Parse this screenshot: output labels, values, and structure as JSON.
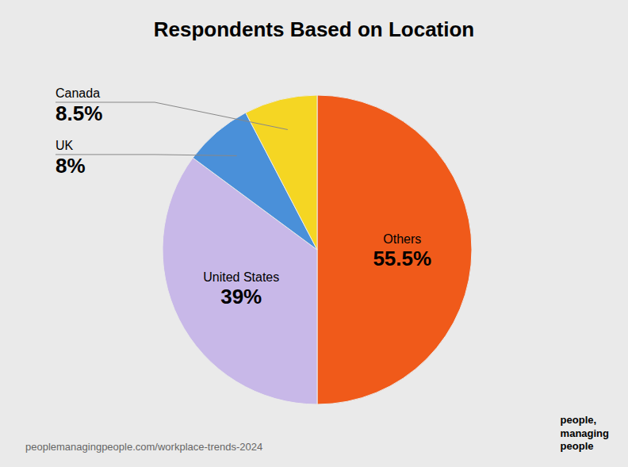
{
  "chart_data": {
    "type": "pie",
    "title": "Respondents Based on Location",
    "categories": [
      "Others",
      "United States",
      "UK",
      "Canada"
    ],
    "values": [
      55.5,
      39,
      8,
      8.5
    ],
    "value_labels": [
      "55.5%",
      "39%",
      "8%",
      "8.5%"
    ],
    "colors": [
      "#f05a1a",
      "#c8b8e8",
      "#4a90d9",
      "#f5d623"
    ],
    "data_labels": true,
    "annotations": [
      "peoplemanagingpeople.com/workplace-trends-2024",
      "people,\nmanaging\npeople"
    ]
  }
}
